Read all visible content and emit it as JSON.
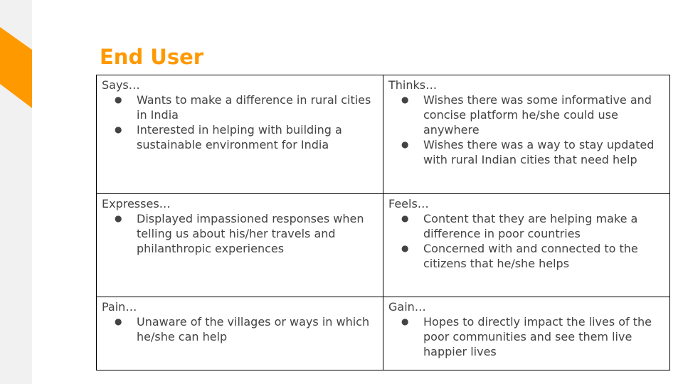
{
  "slide": {
    "title": "End User",
    "accent_color": "#ff9900",
    "side_strip_color": "#f1f1f1"
  },
  "map": {
    "says": {
      "heading": "Says…",
      "items": [
        "Wants to make a difference in rural cities in India",
        "Interested in helping with building a sustainable environment for India"
      ]
    },
    "thinks": {
      "heading": "Thinks…",
      "items": [
        "Wishes there was some informative and concise platform he/she could use anywhere",
        "Wishes there was a way to stay updated with rural Indian cities that need help"
      ]
    },
    "expresses": {
      "heading": "Expresses…",
      "items": [
        "Displayed impassioned responses when telling us about his/her travels and philanthropic experiences"
      ]
    },
    "feels": {
      "heading": "Feels…",
      "items": [
        "Content that they are helping make a difference in poor countries",
        "Concerned with and connected to the citizens that he/she helps"
      ]
    },
    "pain": {
      "heading": "Pain…",
      "items": [
        "Unaware of the villages or ways in which he/she can help"
      ]
    },
    "gain": {
      "heading": "Gain…",
      "items": [
        "Hopes to directly impact the lives of the poor communities and see them live happier lives"
      ]
    }
  }
}
